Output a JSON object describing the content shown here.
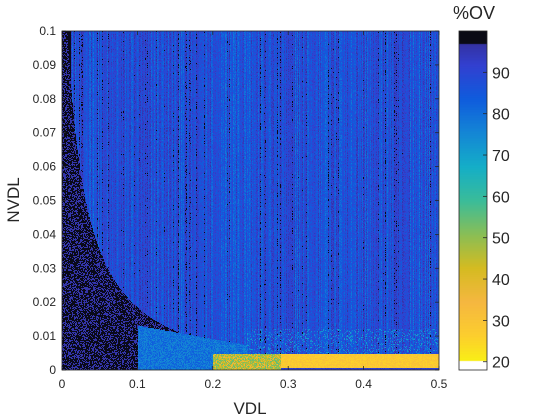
{
  "chart_data": {
    "type": "heatmap",
    "title": "",
    "xlabel": "VDL",
    "ylabel": "NVDL",
    "xlim": [
      0,
      0.5
    ],
    "ylim": [
      0,
      0.1
    ],
    "x_ticks": [
      0,
      0.1,
      0.2,
      0.3,
      0.4,
      0.5
    ],
    "x_tick_labels": [
      "0",
      "0.1",
      "0.2",
      "0.3",
      "0.4",
      "0.5"
    ],
    "y_ticks": [
      0,
      0.01,
      0.02,
      0.03,
      0.04,
      0.05,
      0.06,
      0.07,
      0.08,
      0.09,
      0.1
    ],
    "y_tick_labels": [
      "0",
      "0.01",
      "0.02",
      "0.03",
      "0.04",
      "0.05",
      "0.06",
      "0.07",
      "0.08",
      "0.09",
      "0.1"
    ],
    "colorbar": {
      "label": "%OV",
      "limits": [
        18,
        100
      ],
      "ticks": [
        20,
        30,
        40,
        50,
        60,
        70,
        80,
        90
      ],
      "tick_labels": [
        "20",
        "30",
        "40",
        "50",
        "60",
        "70",
        "80",
        "90"
      ],
      "colormap": "parula"
    },
    "regions": [
      {
        "desc": "background",
        "x": [
          0,
          0.5
        ],
        "y": [
          0,
          0.1
        ],
        "value": 88
      },
      {
        "desc": "dark band at low VDL",
        "x": [
          0,
          0.01
        ],
        "y": [
          0,
          0.1
        ],
        "value": 98
      },
      {
        "desc": "dark region below curve",
        "x": [
          0,
          0.1
        ],
        "y": [
          0,
          0.03
        ],
        "value": 96
      },
      {
        "desc": "light-blue wedge",
        "x": [
          0.1,
          0.24
        ],
        "y": [
          0,
          0.013
        ],
        "value": 76
      },
      {
        "desc": "yellow-green strip",
        "x": [
          0.2,
          0.29
        ],
        "y": [
          0,
          0.005
        ],
        "value": 40
      },
      {
        "desc": "yellow block",
        "x": [
          0.29,
          0.5
        ],
        "y": [
          0,
          0.005
        ],
        "value": 28
      }
    ]
  }
}
